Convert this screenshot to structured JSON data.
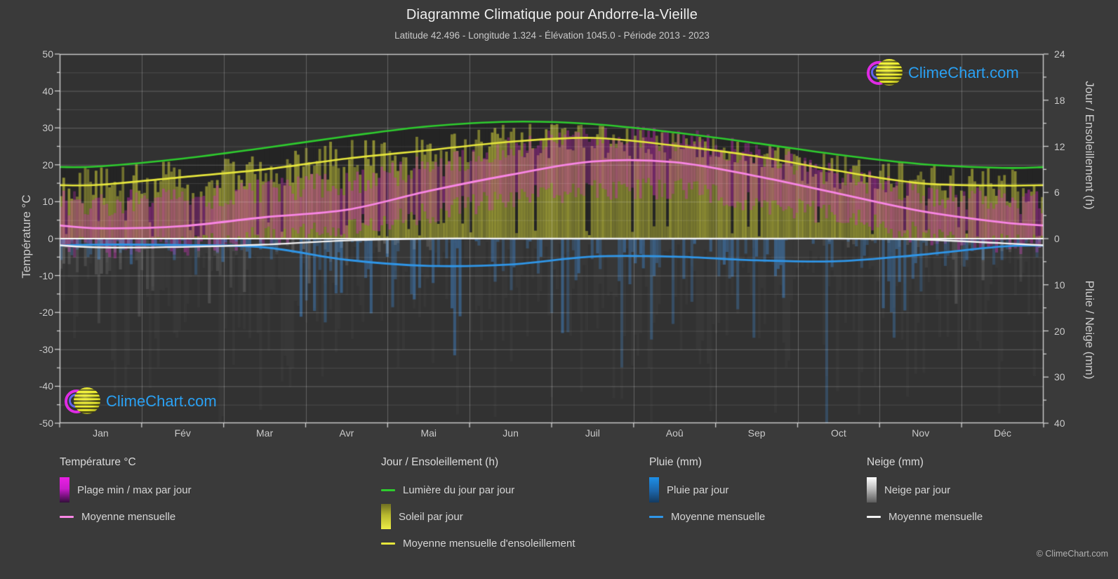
{
  "header": {
    "title": "Diagramme Climatique pour Andorre-la-Vieille",
    "subtitle": "Latitude 42.496 - Longitude 1.324 - Élévation 1045.0 - Période 2013 - 2023"
  },
  "watermark": {
    "text": "ClimeChart.com"
  },
  "copyright": "© ClimeChart.com",
  "axes": {
    "left": {
      "title": "Température °C",
      "ticks": [
        50,
        40,
        30,
        20,
        10,
        0,
        -10,
        -20,
        -30,
        -40,
        -50
      ],
      "range": [
        -50,
        50
      ]
    },
    "right_top": {
      "title": "Jour / Ensoleillement (h)",
      "ticks": [
        24,
        18,
        12,
        6,
        0
      ],
      "range": [
        0,
        24
      ]
    },
    "right_bottom": {
      "title": "Pluie / Neige (mm)",
      "ticks": [
        10,
        20,
        30,
        40
      ],
      "range": [
        0,
        40
      ],
      "direction": "down"
    },
    "x": {
      "months": [
        "Jan",
        "Fév",
        "Mar",
        "Avr",
        "Mai",
        "Jun",
        "Juil",
        "Aoû",
        "Sep",
        "Oct",
        "Nov",
        "Déc"
      ]
    }
  },
  "legend": {
    "groups": [
      {
        "title": "Température °C",
        "items": [
          {
            "swatch": "gradient-magenta",
            "label": "Plage min / max par jour"
          },
          {
            "swatch": "line",
            "color": "#f986e5",
            "label": "Moyenne mensuelle"
          }
        ]
      },
      {
        "title": "Jour / Ensoleillement (h)",
        "items": [
          {
            "swatch": "line",
            "color": "#2ecc2e",
            "label": "Lumière du jour par jour"
          },
          {
            "swatch": "gradient-yellow",
            "label": "Soleil par jour"
          },
          {
            "swatch": "line",
            "color": "#e6e63c",
            "label": "Moyenne mensuelle d'ensoleillement"
          }
        ]
      },
      {
        "title": "Pluie (mm)",
        "items": [
          {
            "swatch": "gradient-blue",
            "label": "Pluie par jour"
          },
          {
            "swatch": "line",
            "color": "#2f96e8",
            "label": "Moyenne mensuelle"
          }
        ]
      },
      {
        "title": "Neige (mm)",
        "items": [
          {
            "swatch": "gradient-white",
            "label": "Neige par jour"
          },
          {
            "swatch": "line",
            "color": "#f2f2f2",
            "label": "Moyenne mensuelle"
          }
        ]
      }
    ]
  },
  "colors": {
    "page_bg": "#3a3a3a",
    "plot_bg": "#323232",
    "daylight_band": "#242424",
    "grid_minor": "rgba(255,255,255,0.13)",
    "grid_major": "rgba(255,255,255,0.24)",
    "axis_line": "rgba(235,235,235,0.85)",
    "zero_line": "#ffffff",
    "daylight_line": "#2ecc2e",
    "sunshine_line": "#e6e63c",
    "sun_bar": "rgba(210,210,60,0.50)",
    "temp_band_bar": "rgba(208,44,188,0.38)",
    "temp_mean_line": "#f986e5",
    "rain_bar": "rgba(62,125,188,0.50)",
    "rain_mean_line": "#2f96e8",
    "snow_bar": "rgba(215,215,215,0.16)",
    "snow_mean_line": "#f2f2f2",
    "watermark_text": "#2aa0f2"
  },
  "chart_data": {
    "type": "climate-composite",
    "months": [
      "Jan",
      "Fév",
      "Mar",
      "Avr",
      "Mai",
      "Jun",
      "Juil",
      "Aoû",
      "Sep",
      "Oct",
      "Nov",
      "Déc"
    ],
    "axis_mapping": {
      "temp_axis_range": [
        -50,
        50
      ],
      "hours_axis_range": [
        0,
        24
      ],
      "hours_plotted_on_temp": "0h at 0°C, 24h at 50°C",
      "mm_axis_range": [
        0,
        40
      ],
      "mm_plotted_on_temp": "0mm at 0°C, 40mm at -50°C (downward)"
    },
    "series": [
      {
        "name": "Lumière du jour par jour",
        "type": "line",
        "axis": "hours",
        "color": "#2ecc2e",
        "values": [
          9.4,
          10.4,
          11.8,
          13.3,
          14.6,
          15.2,
          14.9,
          13.8,
          12.4,
          10.9,
          9.7,
          9.2
        ]
      },
      {
        "name": "Soleil par jour",
        "type": "daily-bars",
        "axis": "hours",
        "color": "#d2d23c",
        "monthly_mean": [
          7.0,
          8.0,
          9.0,
          10.4,
          11.5,
          12.6,
          13.1,
          12.1,
          10.7,
          8.8,
          7.2,
          6.9
        ]
      },
      {
        "name": "Moyenne mensuelle d'ensoleillement",
        "type": "line",
        "axis": "hours",
        "color": "#e6e63c",
        "values": [
          7.0,
          8.0,
          9.0,
          10.4,
          11.5,
          12.6,
          13.1,
          12.1,
          10.7,
          8.8,
          7.2,
          6.9
        ]
      },
      {
        "name": "Plage min / max par jour",
        "type": "daily-range-bars",
        "axis": "temp",
        "color": "#d02cbc",
        "monthly_max_mean": [
          9.5,
          10.5,
          13.0,
          15.0,
          19.5,
          24.5,
          27.5,
          27.0,
          22.5,
          17.0,
          12.0,
          10.0
        ],
        "monthly_min_mean": [
          -2.5,
          -2.0,
          0.5,
          3.0,
          7.0,
          11.0,
          13.5,
          13.5,
          10.0,
          6.0,
          1.0,
          -1.5
        ]
      },
      {
        "name": "Moyenne mensuelle (température)",
        "type": "line",
        "axis": "temp",
        "color": "#f986e5",
        "values": [
          2.8,
          3.4,
          5.8,
          7.8,
          12.9,
          17.3,
          20.9,
          20.7,
          16.9,
          12.2,
          7.5,
          4.4
        ]
      },
      {
        "name": "Pluie par jour",
        "type": "daily-bars",
        "axis": "mm",
        "color": "#3e7dbc",
        "monthly_mean": [
          1.3,
          1.4,
          1.9,
          4.6,
          5.9,
          5.6,
          3.9,
          3.9,
          4.7,
          4.9,
          3.5,
          1.7
        ]
      },
      {
        "name": "Moyenne mensuelle (pluie)",
        "type": "line",
        "axis": "mm",
        "color": "#2f96e8",
        "values": [
          1.3,
          1.4,
          1.9,
          4.6,
          5.9,
          5.6,
          3.9,
          3.9,
          4.7,
          4.9,
          3.5,
          1.7
        ]
      },
      {
        "name": "Neige par jour",
        "type": "daily-bars",
        "axis": "mm",
        "color": "#d7d7d7",
        "monthly_mean": [
          1.9,
          1.8,
          1.3,
          0.4,
          0.05,
          0,
          0,
          0,
          0,
          0.05,
          0.2,
          1.0
        ]
      },
      {
        "name": "Moyenne mensuelle (neige)",
        "type": "line",
        "axis": "mm",
        "color": "#f2f2f2",
        "values": [
          1.9,
          1.8,
          1.3,
          0.4,
          0,
          0,
          0,
          0,
          0,
          0,
          0.2,
          1.0
        ]
      }
    ]
  }
}
